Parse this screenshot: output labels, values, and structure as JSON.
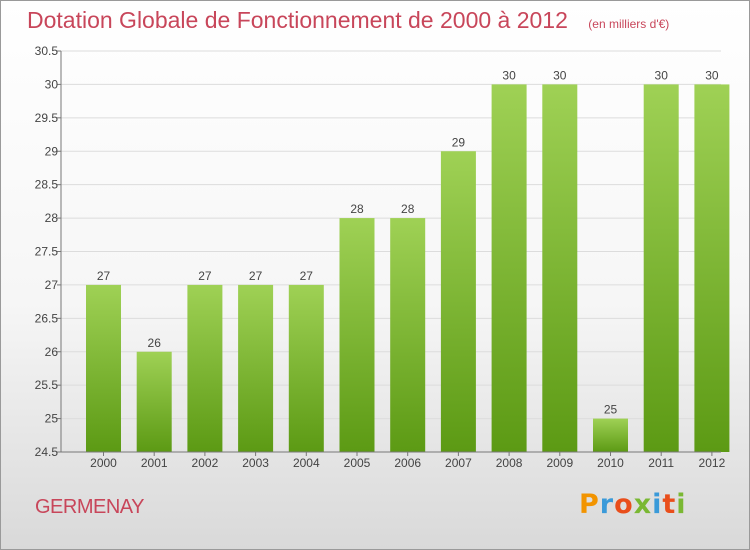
{
  "header": {
    "title": "Dotation Globale de Fonctionnement de 2000 à 2012",
    "subtitle": "(en milliers d'€)"
  },
  "footer": {
    "commune": "GERMENAY",
    "logo_text": "Proxiti"
  },
  "colors": {
    "title": "#c8465a",
    "bar_top": "#9fd155",
    "bar_bottom": "#5c9a14",
    "logo_letters": [
      "#f29400",
      "#3a9ad9",
      "#e94e1b",
      "#7ab833",
      "#3a9ad9",
      "#e94e1b",
      "#7ab833"
    ]
  },
  "chart_data": {
    "type": "bar",
    "categories": [
      "2000",
      "2001",
      "2002",
      "2003",
      "2004",
      "2005",
      "2006",
      "2007",
      "2008",
      "2009",
      "2010",
      "2011",
      "2012"
    ],
    "values": [
      27,
      26,
      27,
      27,
      27,
      28,
      28,
      29,
      30,
      30,
      25,
      30,
      30
    ],
    "data_labels": [
      "27",
      "26",
      "27",
      "27",
      "27",
      "28",
      "28",
      "29",
      "30",
      "30",
      "25",
      "30",
      "30"
    ],
    "yticks": [
      "24.5",
      "25",
      "25.5",
      "26",
      "26.5",
      "27",
      "27.5",
      "28",
      "28.5",
      "29",
      "29.5",
      "30",
      "30.5"
    ],
    "ylim": [
      24.5,
      30.5
    ],
    "xlabel": "",
    "ylabel": "",
    "grid": true
  }
}
